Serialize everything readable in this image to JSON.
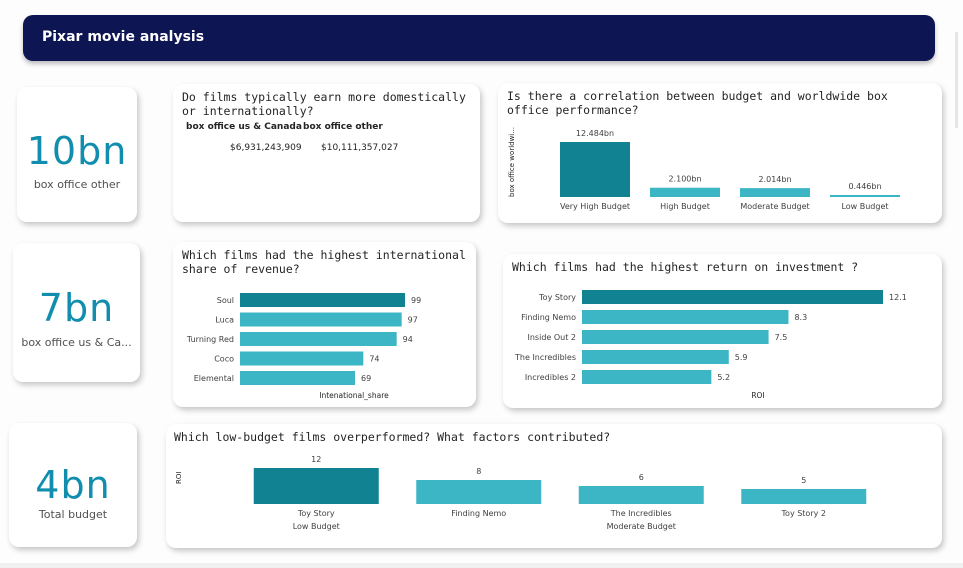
{
  "header": {
    "title": "Pixar movie analysis"
  },
  "colors": {
    "header_bg": "#0d1553",
    "bar_dark": "#108291",
    "bar_light": "#3cb6c5",
    "kpi": "#118dad"
  },
  "kpis": [
    {
      "value": "10bn",
      "label": "box office other"
    },
    {
      "value": "7bn",
      "label": "box office us & Ca..."
    },
    {
      "value": "4bn",
      "label": "Total budget"
    }
  ],
  "domestic_vs_international": {
    "title": "Do films typically earn more domestically or internationally?",
    "columns": [
      "box office us & Canada",
      "box office other"
    ],
    "values": [
      "$6,931,243,909",
      "$10,111,357,027"
    ]
  },
  "chart_data": [
    {
      "id": "budget_correlation",
      "type": "bar",
      "title": "Is there a correlation between budget and worldwide box office performance?",
      "ylabel": "box office worldwi...",
      "xlabel": "",
      "categories": [
        "Very High Budget",
        "High Budget",
        "Moderate Budget",
        "Low Budget"
      ],
      "values": [
        12.484,
        2.1,
        2.014,
        0.446
      ],
      "data_labels": [
        "12.484bn",
        "2.100bn",
        "2.014bn",
        "0.446bn"
      ],
      "ylim": [
        0,
        12.484
      ],
      "grid": false
    },
    {
      "id": "international_share",
      "type": "bar",
      "orientation": "horizontal",
      "title": "Which films had the highest international share of revenue?",
      "xlabel": "Intenational_share",
      "categories": [
        "Soul",
        "Luca",
        "Turning Red",
        "Coco",
        "Elemental"
      ],
      "values": [
        99,
        97,
        94,
        74,
        69
      ],
      "data_labels": [
        "99",
        "97",
        "94",
        "74",
        "69"
      ],
      "xlim": [
        0,
        99
      ],
      "grid": false
    },
    {
      "id": "roi",
      "type": "bar",
      "orientation": "horizontal",
      "title": "Which films had the highest return on investment ?",
      "xlabel": "ROI",
      "categories": [
        "Toy Story",
        "Finding Nemo",
        "Inside Out 2",
        "The Incredibles",
        "Incredibles 2"
      ],
      "values": [
        12.1,
        8.3,
        7.5,
        5.9,
        5.2
      ],
      "data_labels": [
        "12.1",
        "8.3",
        "7.5",
        "5.9",
        "5.2"
      ],
      "xlim": [
        0,
        12.1
      ],
      "grid": false
    },
    {
      "id": "low_budget",
      "type": "bar",
      "title": "Which low-budget films overperformed? What factors contributed?",
      "ylabel": "ROI",
      "xlabel": "",
      "categories": [
        "Toy Story",
        "Finding Nemo",
        "The Incredibles",
        "Toy Story 2"
      ],
      "group_labels": [
        "Low Budget",
        "",
        "Moderate Budget",
        ""
      ],
      "values": [
        12,
        8,
        6,
        5
      ],
      "data_labels": [
        "12",
        "8",
        "6",
        "5"
      ],
      "ylim": [
        0,
        12
      ],
      "grid": false
    }
  ]
}
